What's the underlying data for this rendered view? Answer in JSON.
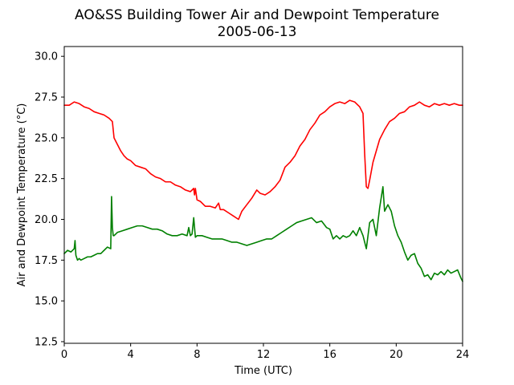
{
  "chart_data": {
    "type": "line",
    "title": "AO&SS Building Tower Air and Dewpoint Temperature",
    "subtitle": "2005-06-13",
    "xlabel": "Time (UTC)",
    "ylabel": "Air and Dewpoint Temperature (°C)",
    "xlim": [
      0,
      24
    ],
    "ylim": [
      12.4,
      30.6
    ],
    "xticks": [
      0,
      4,
      8,
      12,
      16,
      20,
      24
    ],
    "yticks": [
      12.5,
      15.0,
      17.5,
      20.0,
      22.5,
      25.0,
      27.5,
      30.0
    ],
    "grid": false,
    "legend": "none",
    "series": [
      {
        "color": "#ff0000",
        "x": [
          0,
          0.3,
          0.6,
          0.9,
          1.2,
          1.5,
          1.8,
          2.1,
          2.4,
          2.7,
          2.9,
          3.0,
          3.2,
          3.4,
          3.6,
          3.8,
          4.0,
          4.3,
          4.6,
          4.9,
          5.2,
          5.5,
          5.8,
          6.1,
          6.4,
          6.7,
          7.0,
          7.3,
          7.6,
          7.8,
          7.85,
          7.9,
          8.0,
          8.2,
          8.5,
          8.8,
          9.1,
          9.3,
          9.4,
          9.6,
          9.9,
          10.2,
          10.5,
          10.7,
          11.0,
          11.3,
          11.6,
          11.8,
          12.1,
          12.4,
          12.7,
          13.0,
          13.3,
          13.6,
          13.9,
          14.2,
          14.5,
          14.8,
          15.1,
          15.4,
          15.7,
          16.0,
          16.3,
          16.6,
          16.9,
          17.2,
          17.5,
          17.8,
          18.0,
          18.1,
          18.2,
          18.3,
          18.4,
          18.6,
          18.8,
          19.0,
          19.3,
          19.6,
          19.9,
          20.2,
          20.5,
          20.8,
          21.1,
          21.4,
          21.7,
          22.0,
          22.3,
          22.6,
          22.9,
          23.2,
          23.5,
          23.8,
          24.0
        ],
        "values": [
          27.0,
          27.0,
          27.2,
          27.1,
          26.9,
          26.8,
          26.6,
          26.5,
          26.4,
          26.2,
          26.0,
          25.0,
          24.6,
          24.2,
          23.9,
          23.7,
          23.6,
          23.3,
          23.2,
          23.1,
          22.8,
          22.6,
          22.5,
          22.3,
          22.3,
          22.1,
          22.0,
          21.8,
          21.7,
          21.9,
          21.5,
          21.9,
          21.2,
          21.1,
          20.8,
          20.8,
          20.7,
          21.0,
          20.6,
          20.6,
          20.4,
          20.2,
          20.0,
          20.5,
          20.9,
          21.3,
          21.8,
          21.6,
          21.5,
          21.7,
          22.0,
          22.4,
          23.2,
          23.5,
          23.9,
          24.5,
          24.9,
          25.5,
          25.9,
          26.4,
          26.6,
          26.9,
          27.1,
          27.2,
          27.1,
          27.3,
          27.2,
          26.9,
          26.5,
          24.0,
          22.0,
          21.9,
          22.4,
          23.5,
          24.2,
          24.9,
          25.5,
          26.0,
          26.2,
          26.5,
          26.6,
          26.9,
          27.0,
          27.2,
          27.0,
          26.9,
          27.1,
          27.0,
          27.1,
          27.0,
          27.1,
          27.0,
          27.0
        ]
      },
      {
        "color": "#008000",
        "x": [
          0,
          0.2,
          0.4,
          0.6,
          0.65,
          0.7,
          0.8,
          0.9,
          1.0,
          1.2,
          1.4,
          1.6,
          1.8,
          2.0,
          2.2,
          2.4,
          2.6,
          2.8,
          2.85,
          2.9,
          2.95,
          3.0,
          3.2,
          3.5,
          3.8,
          4.1,
          4.4,
          4.7,
          5.0,
          5.3,
          5.6,
          5.9,
          6.2,
          6.5,
          6.8,
          7.1,
          7.4,
          7.5,
          7.6,
          7.7,
          7.8,
          7.9,
          8.0,
          8.3,
          8.6,
          8.9,
          9.2,
          9.5,
          9.8,
          10.1,
          10.4,
          10.7,
          11.0,
          11.3,
          11.6,
          11.9,
          12.2,
          12.5,
          12.8,
          13.1,
          13.4,
          13.7,
          14.0,
          14.3,
          14.6,
          14.9,
          15.2,
          15.5,
          15.8,
          16.0,
          16.2,
          16.4,
          16.6,
          16.8,
          17.0,
          17.2,
          17.4,
          17.6,
          17.8,
          18.0,
          18.2,
          18.4,
          18.6,
          18.8,
          19.0,
          19.2,
          19.3,
          19.5,
          19.7,
          19.9,
          20.1,
          20.3,
          20.5,
          20.7,
          20.9,
          21.1,
          21.3,
          21.5,
          21.7,
          21.9,
          22.1,
          22.3,
          22.5,
          22.7,
          22.9,
          23.1,
          23.3,
          23.5,
          23.7,
          23.9,
          24.0
        ],
        "values": [
          17.9,
          18.1,
          18.0,
          18.2,
          18.7,
          17.8,
          17.5,
          17.6,
          17.5,
          17.6,
          17.7,
          17.7,
          17.8,
          17.9,
          17.9,
          18.1,
          18.3,
          18.2,
          21.4,
          19.5,
          19.0,
          19.0,
          19.2,
          19.3,
          19.4,
          19.5,
          19.6,
          19.6,
          19.5,
          19.4,
          19.4,
          19.3,
          19.1,
          19.0,
          19.0,
          19.1,
          19.0,
          19.5,
          19.0,
          19.1,
          20.1,
          18.9,
          19.0,
          19.0,
          18.9,
          18.8,
          18.8,
          18.8,
          18.7,
          18.6,
          18.6,
          18.5,
          18.4,
          18.5,
          18.6,
          18.7,
          18.8,
          18.8,
          19.0,
          19.2,
          19.4,
          19.6,
          19.8,
          19.9,
          20.0,
          20.1,
          19.8,
          19.9,
          19.5,
          19.4,
          18.8,
          19.0,
          18.8,
          19.0,
          18.9,
          19.0,
          19.3,
          19.0,
          19.5,
          19.0,
          18.2,
          19.8,
          20.0,
          19.0,
          20.7,
          22.0,
          20.5,
          20.9,
          20.5,
          19.6,
          19.0,
          18.6,
          18.0,
          17.5,
          17.8,
          17.9,
          17.3,
          17.0,
          16.5,
          16.6,
          16.3,
          16.7,
          16.6,
          16.8,
          16.6,
          16.9,
          16.7,
          16.8,
          16.9,
          16.4,
          16.2
        ]
      }
    ]
  }
}
